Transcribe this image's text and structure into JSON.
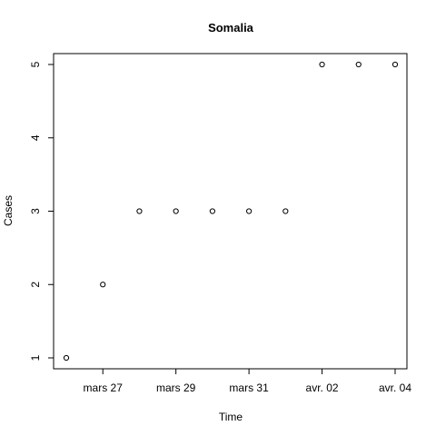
{
  "chart_data": {
    "type": "scatter",
    "title": "Somalia",
    "xlabel": "Time",
    "ylabel": "Cases",
    "x": [
      "2020-03-26",
      "2020-03-27",
      "2020-03-28",
      "2020-03-29",
      "2020-03-30",
      "2020-03-31",
      "2020-04-01",
      "2020-04-02",
      "2020-04-03",
      "2020-04-04"
    ],
    "y": [
      1,
      2,
      3,
      3,
      3,
      3,
      3,
      5,
      5,
      5
    ],
    "x_ticks": [
      {
        "date": "2020-03-27",
        "label": "mars 27"
      },
      {
        "date": "2020-03-29",
        "label": "mars 29"
      },
      {
        "date": "2020-03-31",
        "label": "mars 31"
      },
      {
        "date": "2020-04-02",
        "label": "avr. 02"
      },
      {
        "date": "2020-04-04",
        "label": "avr. 04"
      }
    ],
    "y_ticks": [
      1,
      2,
      3,
      4,
      5
    ],
    "xlim": [
      "2020-03-26",
      "2020-04-04"
    ],
    "ylim": [
      1,
      5
    ],
    "marker": "open-circle",
    "grid": false,
    "colors": {
      "points": "#000000",
      "axes": "#000000",
      "background": "#ffffff"
    }
  }
}
